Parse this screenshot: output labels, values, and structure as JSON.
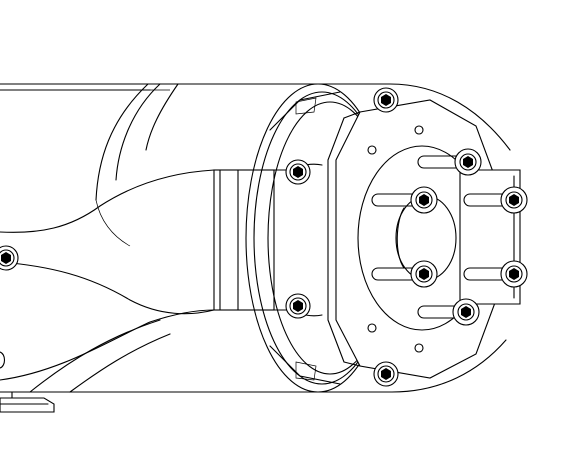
{
  "drawing": {
    "subject": "line-drawing",
    "colors": {
      "stroke": "#000000",
      "background": "#ffffff"
    },
    "bolts": [
      {
        "name": "cap-screw-top-rim"
      },
      {
        "name": "cap-screw-left-upper"
      },
      {
        "name": "cap-screw-left-lower"
      },
      {
        "name": "cap-screw-bottom-rim"
      },
      {
        "name": "cap-screw-arm-left"
      },
      {
        "name": "pin-screw-top"
      },
      {
        "name": "pin-screw-right-upper"
      },
      {
        "name": "pin-screw-center-upper"
      },
      {
        "name": "pin-screw-center-lower"
      },
      {
        "name": "pin-screw-right-lower"
      },
      {
        "name": "pin-screw-bottom"
      }
    ]
  }
}
